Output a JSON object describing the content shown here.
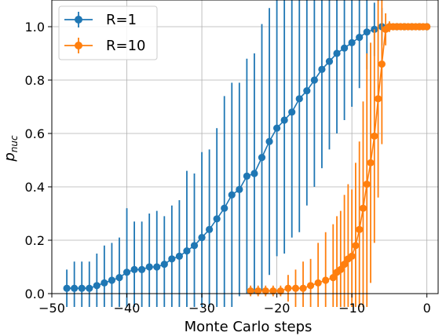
{
  "chart_data": {
    "type": "line",
    "title": "",
    "xlabel": "Monte Carlo steps",
    "ylabel_main": "p",
    "ylabel_sub": "nuc",
    "xlim": [
      -50,
      1.5
    ],
    "ylim": [
      0,
      1.1
    ],
    "xticks": [
      -50,
      -40,
      -30,
      -20,
      -10,
      0
    ],
    "xtick_labels": [
      "−50",
      "−40",
      "−30",
      "−20",
      "−10",
      "0"
    ],
    "yticks": [
      0.0,
      0.2,
      0.4,
      0.6,
      0.8,
      1.0
    ],
    "ytick_labels": [
      "0.0",
      "0.2",
      "0.4",
      "0.6",
      "0.8",
      "1.0"
    ],
    "grid": true,
    "legend_position": "upper-left",
    "series": [
      {
        "name": "R=1",
        "color": "#1f77b4",
        "x": [
          -48,
          -47,
          -46,
          -45,
          -44,
          -43,
          -42,
          -41,
          -40,
          -39,
          -38,
          -37,
          -36,
          -35,
          -34,
          -33,
          -32,
          -31,
          -30,
          -29,
          -28,
          -27,
          -26,
          -25,
          -24,
          -23,
          -22,
          -21,
          -20,
          -19,
          -18,
          -17,
          -16,
          -15,
          -14,
          -13,
          -12,
          -11,
          -10,
          -9,
          -8,
          -7,
          -6,
          -5,
          -4,
          -3,
          -2,
          -1,
          0
        ],
        "y": [
          0.02,
          0.02,
          0.02,
          0.02,
          0.03,
          0.04,
          0.05,
          0.06,
          0.08,
          0.09,
          0.09,
          0.1,
          0.1,
          0.11,
          0.13,
          0.14,
          0.16,
          0.18,
          0.21,
          0.24,
          0.28,
          0.32,
          0.37,
          0.39,
          0.44,
          0.45,
          0.51,
          0.57,
          0.62,
          0.65,
          0.68,
          0.73,
          0.76,
          0.8,
          0.84,
          0.87,
          0.9,
          0.92,
          0.94,
          0.96,
          0.98,
          0.99,
          1.0,
          1.0,
          1.0,
          1.0,
          1.0,
          1.0,
          1.0
        ],
        "err": [
          0.07,
          0.1,
          0.1,
          0.1,
          0.12,
          0.14,
          0.14,
          0.15,
          0.24,
          0.18,
          0.18,
          0.2,
          0.21,
          0.18,
          0.2,
          0.21,
          0.3,
          0.27,
          0.32,
          0.3,
          0.34,
          0.42,
          0.42,
          0.4,
          0.44,
          0.45,
          0.5,
          0.5,
          0.48,
          0.5,
          0.47,
          0.5,
          0.43,
          0.4,
          0.37,
          0.33,
          0.3,
          0.27,
          0.24,
          0.19,
          0.14,
          0.1,
          0.07,
          0,
          0,
          0,
          0,
          0,
          0
        ]
      },
      {
        "name": "R=10",
        "color": "#ff7f0e",
        "x": [
          -23.5,
          -22.5,
          -21.5,
          -20.5,
          -19.5,
          -18.5,
          -17.5,
          -16.5,
          -15.5,
          -14.5,
          -13.5,
          -12.5,
          -12,
          -11.5,
          -11,
          -10.5,
          -10,
          -9.5,
          -9,
          -8.5,
          -8,
          -7.5,
          -7,
          -6.5,
          -6,
          -5.5,
          -5,
          -4.5,
          -4,
          -3.5,
          -3,
          -2.5,
          -2,
          -1.5,
          -1,
          -0.5,
          0
        ],
        "y": [
          0.01,
          0.01,
          0.01,
          0.01,
          0.01,
          0.02,
          0.02,
          0.02,
          0.03,
          0.04,
          0.05,
          0.06,
          0.08,
          0.09,
          0.11,
          0.13,
          0.14,
          0.18,
          0.24,
          0.32,
          0.41,
          0.49,
          0.59,
          0.73,
          0.86,
          0.99,
          1.0,
          1.0,
          1.0,
          1.0,
          1.0,
          1.0,
          1.0,
          1.0,
          1.0,
          1.0,
          1.0
        ],
        "err": [
          0.02,
          0.02,
          0.02,
          0.02,
          0.02,
          0.05,
          0.07,
          0.1,
          0.1,
          0.15,
          0.18,
          0.2,
          0.21,
          0.22,
          0.26,
          0.28,
          0.25,
          0.31,
          0.33,
          0.4,
          0.49,
          0.45,
          0.4,
          0.37,
          0.3,
          0.06,
          0.02,
          0,
          0,
          0,
          0,
          0,
          0,
          0,
          0,
          0,
          0
        ]
      }
    ]
  }
}
